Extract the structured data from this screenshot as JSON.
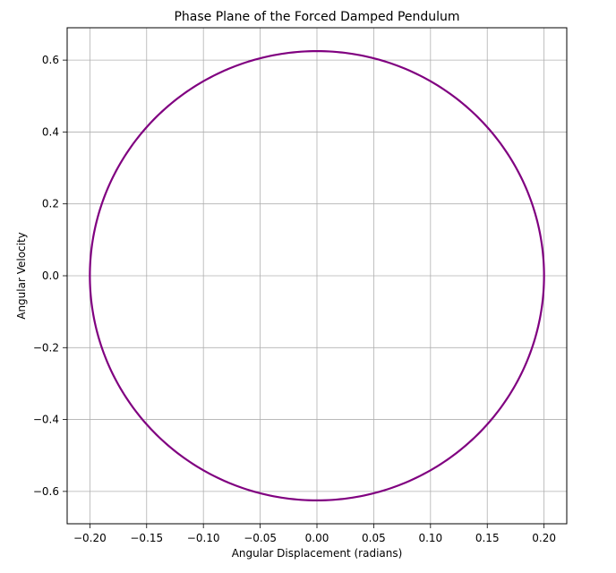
{
  "chart_data": {
    "type": "line",
    "title": "Phase Plane of the Forced Damped Pendulum",
    "xlabel": "Angular Displacement (radians)",
    "ylabel": "Angular Velocity",
    "xlim": [
      -0.22,
      0.22
    ],
    "ylim": [
      -0.69,
      0.69
    ],
    "xticks": [
      -0.2,
      -0.15,
      -0.1,
      -0.05,
      0.0,
      0.05,
      0.1,
      0.15,
      0.2
    ],
    "xtick_labels": [
      "−0.20",
      "−0.15",
      "−0.10",
      "−0.05",
      "0.00",
      "0.05",
      "0.10",
      "0.15",
      "0.20"
    ],
    "yticks": [
      -0.6,
      -0.4,
      -0.2,
      0.0,
      0.2,
      0.4,
      0.6
    ],
    "ytick_labels": [
      "−0.6",
      "−0.4",
      "−0.2",
      "0.0",
      "0.2",
      "0.4",
      "0.6"
    ],
    "grid": true,
    "legend": "none",
    "series": [
      {
        "color": "#800080",
        "shape": "closed-orbit",
        "center": [
          0.0,
          0.0
        ],
        "x_amplitude": 0.2,
        "y_amplitude": 0.625,
        "x": [
          0.2,
          0.1847,
          0.1414,
          0.0765,
          0.0,
          -0.0765,
          -0.1414,
          -0.1847,
          -0.2,
          -0.1847,
          -0.1414,
          -0.0765,
          0.0,
          0.0765,
          0.1414,
          0.1847,
          0.2
        ],
        "y": [
          0.0,
          0.2392,
          0.4419,
          0.5774,
          0.625,
          0.5774,
          0.4419,
          0.2392,
          0.0,
          -0.2392,
          -0.4419,
          -0.5774,
          -0.625,
          -0.5774,
          -0.4419,
          -0.2392,
          0.0
        ]
      }
    ]
  }
}
